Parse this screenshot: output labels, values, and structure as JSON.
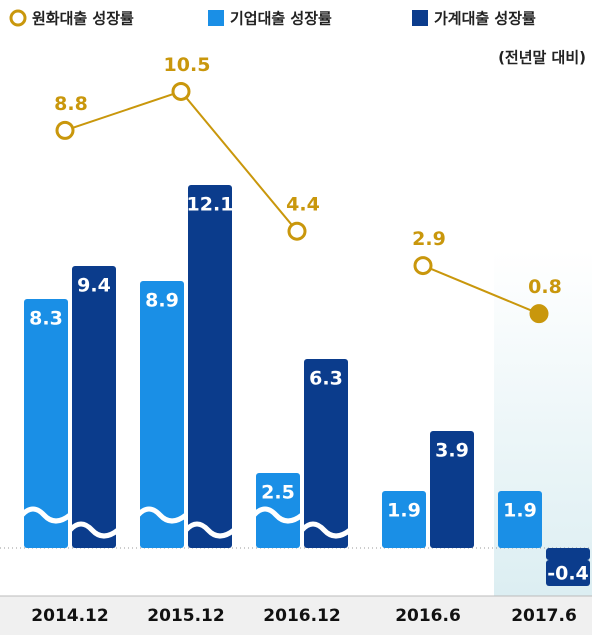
{
  "chart_data": {
    "type": "bar",
    "subtitle": "(전년말 대비)",
    "categories": [
      "2014.12",
      "2015.12",
      "2016.12",
      null,
      "2016.6",
      "2017.6"
    ],
    "series": [
      {
        "name": "원화대출 성장률",
        "type": "line",
        "axis": "y2",
        "color": "#c9970c",
        "values": [
          8.8,
          10.5,
          4.4,
          null,
          2.9,
          0.8
        ],
        "marker_fill": [
          false,
          false,
          false,
          null,
          false,
          true
        ]
      },
      {
        "name": "기업대출 성장률",
        "type": "bar",
        "color": "#1a8fe6",
        "values": [
          8.3,
          8.9,
          2.5,
          null,
          1.9,
          1.9
        ]
      },
      {
        "name": "가계대출 성장률",
        "type": "bar",
        "color": "#0b3c8c",
        "values": [
          9.4,
          12.1,
          6.3,
          null,
          3.9,
          -0.4
        ]
      }
    ],
    "axis_breaks": [
      true,
      true,
      true,
      null,
      false,
      false
    ],
    "ylim": [
      -1.4,
      13.3
    ],
    "y2lim": [
      0,
      11
    ]
  }
}
